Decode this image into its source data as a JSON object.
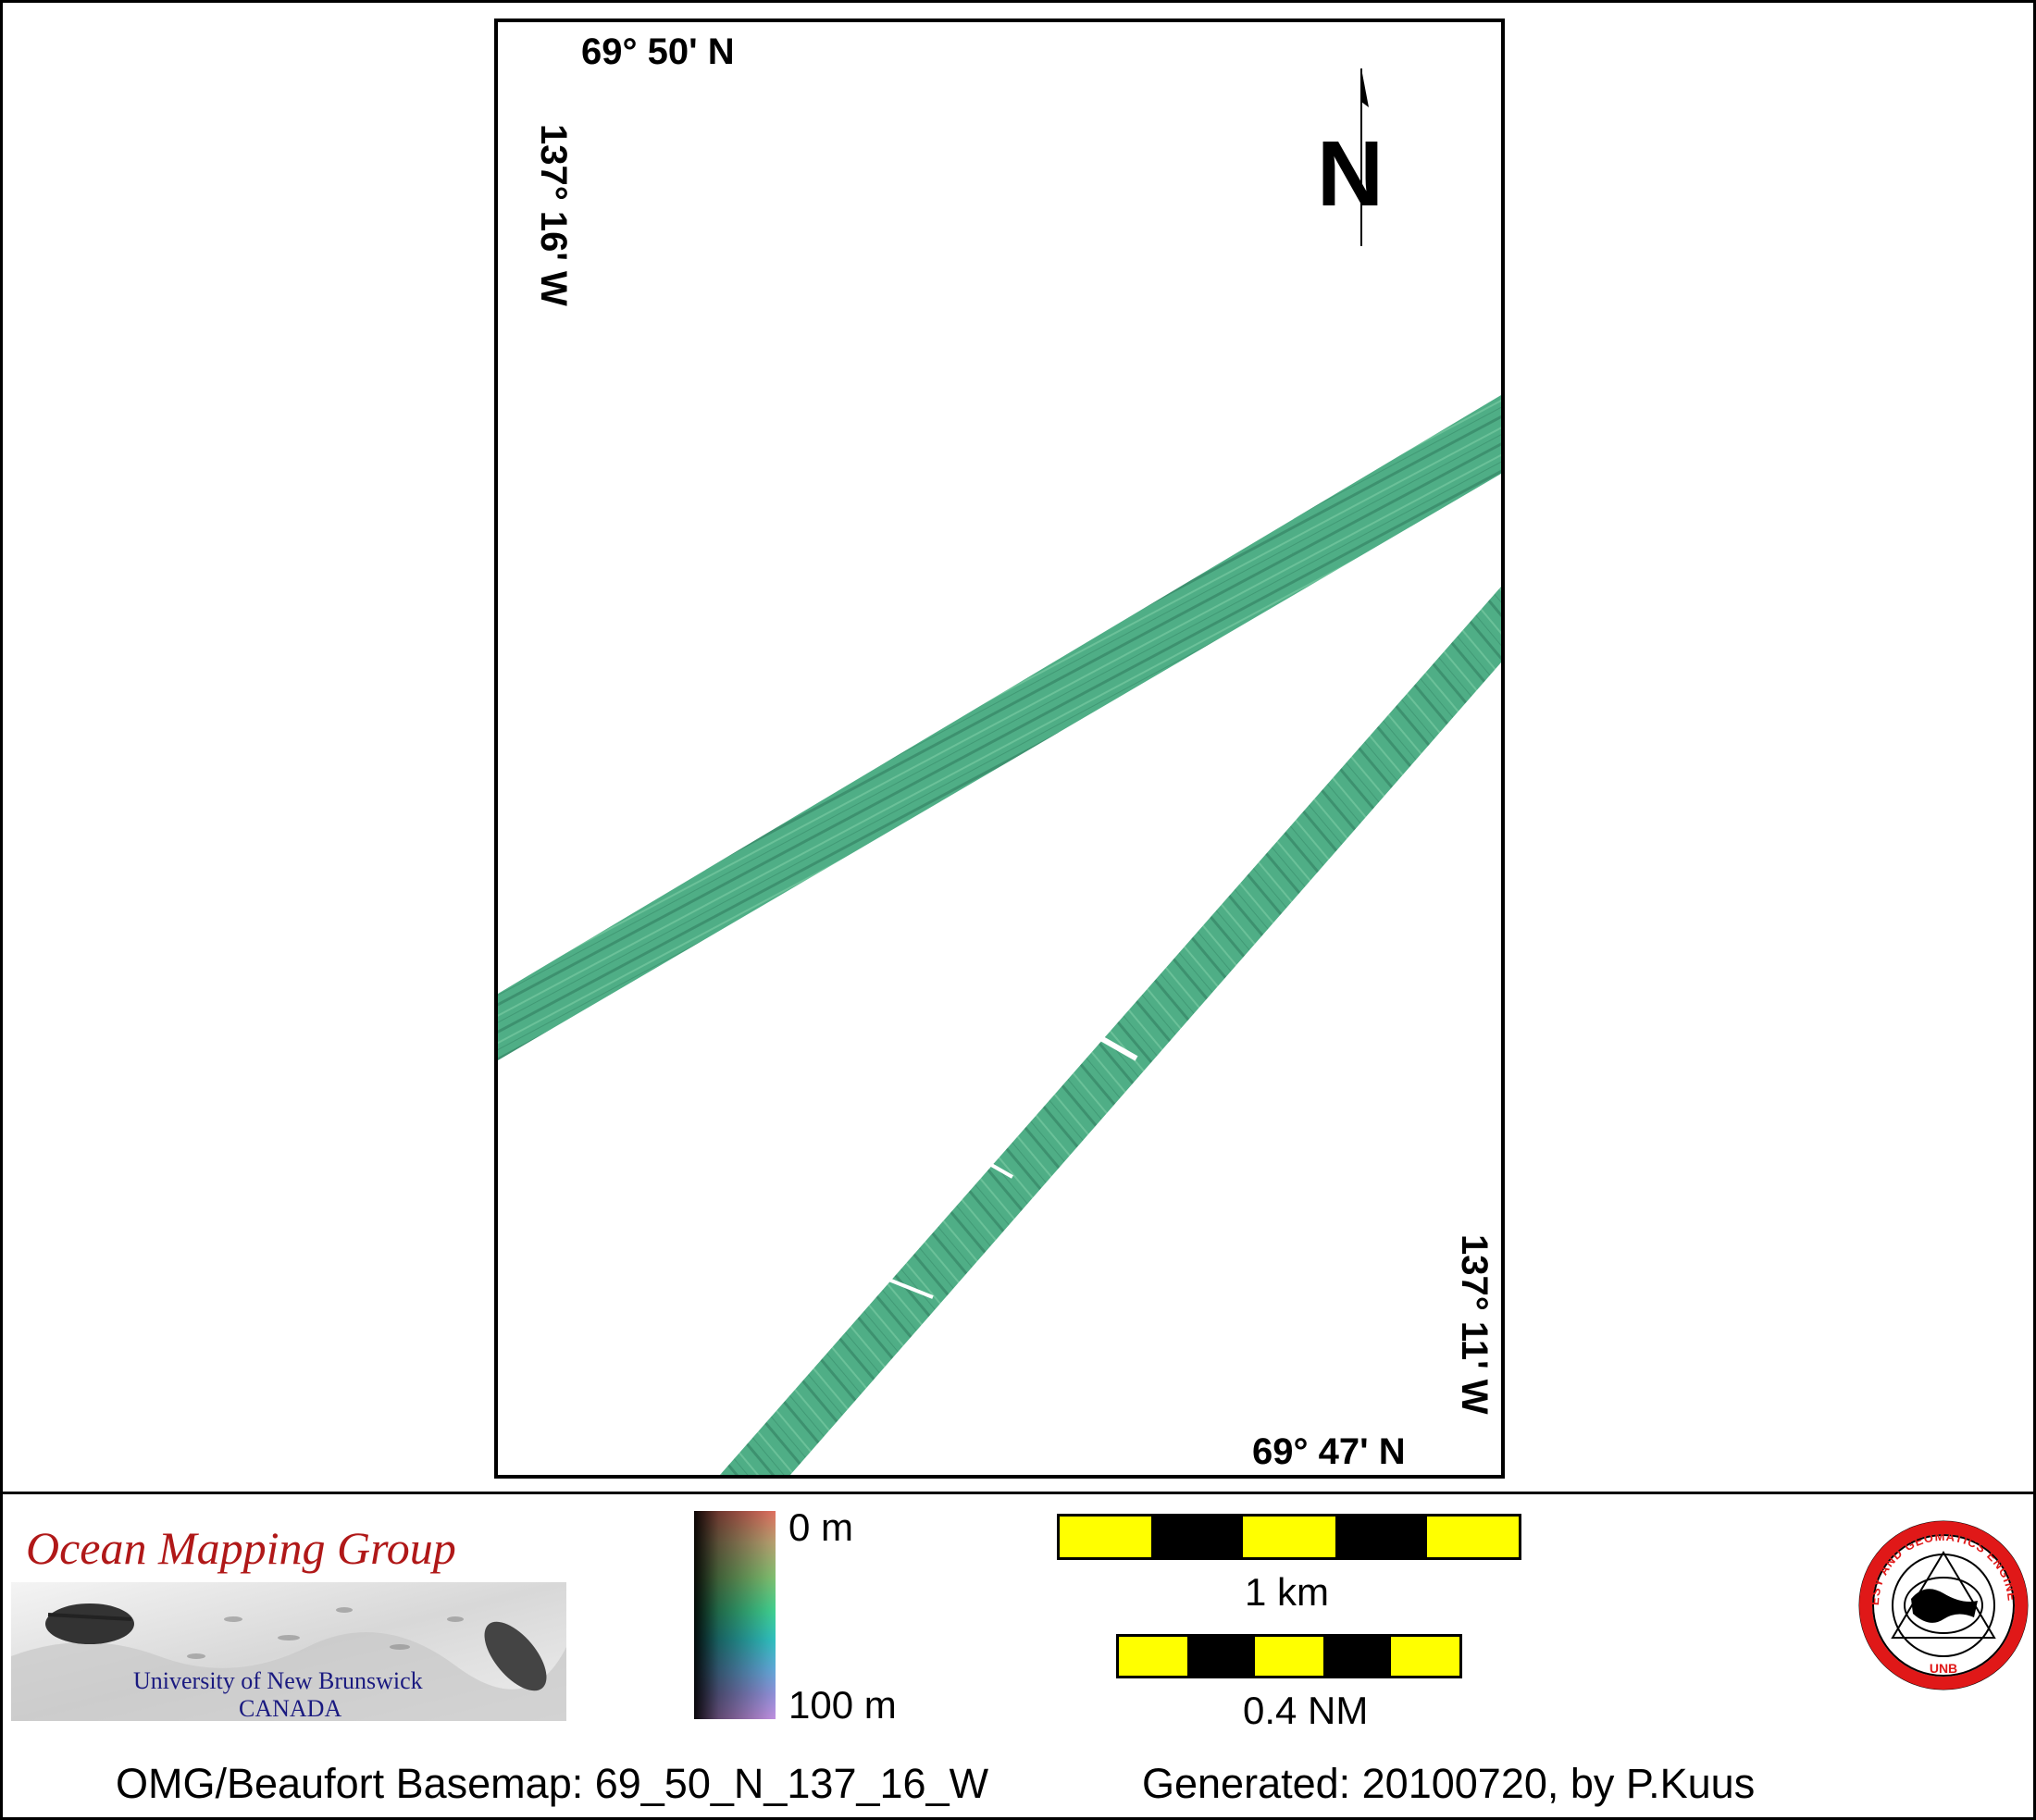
{
  "map": {
    "top_latitude": "69° 50' N",
    "bottom_latitude": "69° 47' N",
    "left_longitude": "137° 16' W",
    "right_longitude": "137° 11' W",
    "north_label": "N",
    "swath_color": "#4fae86"
  },
  "logos": {
    "omg_title": "Ocean Mapping Group",
    "omg_university": "University of New Brunswick",
    "omg_country": "CANADA",
    "unb_ring_text": "GEODESY AND GEOMATICS ENGINEERING",
    "unb_bottom_text": "UNB",
    "unb_ring_color": "#e01818"
  },
  "depth_scale": {
    "min_label": "0 m",
    "max_label": "100 m"
  },
  "scale_bars": {
    "km_label": "1 km",
    "nm_label": "0.4 NM",
    "colors": {
      "fill_a": "#ffff00",
      "fill_b": "#000000"
    }
  },
  "footer": {
    "basemap": "OMG/Beaufort Basemap: 69_50_N_137_16_W",
    "generated": "Generated: 20100720, by P.Kuus"
  }
}
